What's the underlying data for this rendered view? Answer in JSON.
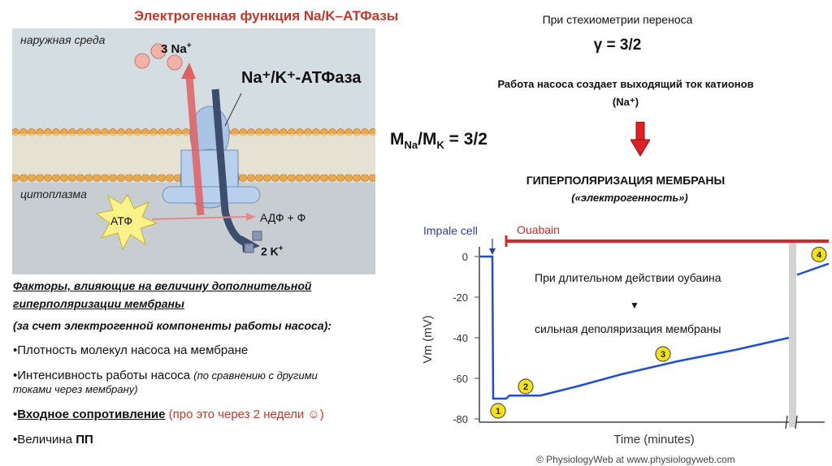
{
  "title": "Электрогенная функция Na/K–АТФазы",
  "figure": {
    "outside_label": "наружная среда",
    "na3_label": "3 Na",
    "na3_sup": "+",
    "pump_label": "Na⁺/K⁺-АТФаза",
    "cytoplasm_label": "цитоплазма",
    "atp_label": "АТФ",
    "adp_label": "АДФ + Ф",
    "k2_label": "2 K",
    "k2_sup": "+"
  },
  "right": {
    "stoich_line": "При стехиометрии переноса",
    "gamma": "γ = 3/2",
    "pump_current": "Работа насоса создает выходящий ток катионов",
    "na_paren": "(Na⁺)",
    "ratio_label": "M",
    "ratio_full": "MNa/MK = 3/2",
    "hyper_title": "ГИПЕРПОЛЯРИЗАЦИЯ МЕМБРАНЫ",
    "hyper_sub": "(«электрогенность»)"
  },
  "factors": {
    "heading_line1": "Факторы, влияющие на величину дополнительной",
    "heading_line2": "гиперполяризации мембраны",
    "sub": "(за счет электрогенной компоненты работы насоса):",
    "item1": "•Плотность молекул насоса на мембране",
    "item2_main": "•Интенсивность работы насоса ",
    "item2_note_line1": "(по сравнению с другими",
    "item2_note_line2": "токами через мембрану)",
    "item3_bullet": "•",
    "item3_bold": "Входное сопротивление",
    "item3_red": " (про это через 2 недели ☺)",
    "item4_plain": "•Величина ",
    "item4_bold": "ПП"
  },
  "chart_data": {
    "type": "line",
    "title": "",
    "xlabel": "Time (minutes)",
    "ylabel": "Vm (mV)",
    "yticks": [
      0,
      -20,
      -40,
      -60,
      -80
    ],
    "ylim": [
      -82,
      2
    ],
    "annotations": {
      "impale": "Impale cell",
      "ouabain": "Ouabain",
      "note1": "При длительном действии оубаина",
      "note_arrow": "▼",
      "note2": "сильная деполяризация мембраны",
      "markers": [
        "1",
        "2",
        "3",
        "4"
      ]
    },
    "credit": "© PhysiologyWeb at www.physiologyweb.com"
  },
  "colors": {
    "title": "#c0392b",
    "trace": "#1f4fd1",
    "ouabain_bar": "#d62728",
    "membrane_bg": "#d4dde2",
    "marker_fill": "#f5e218"
  }
}
